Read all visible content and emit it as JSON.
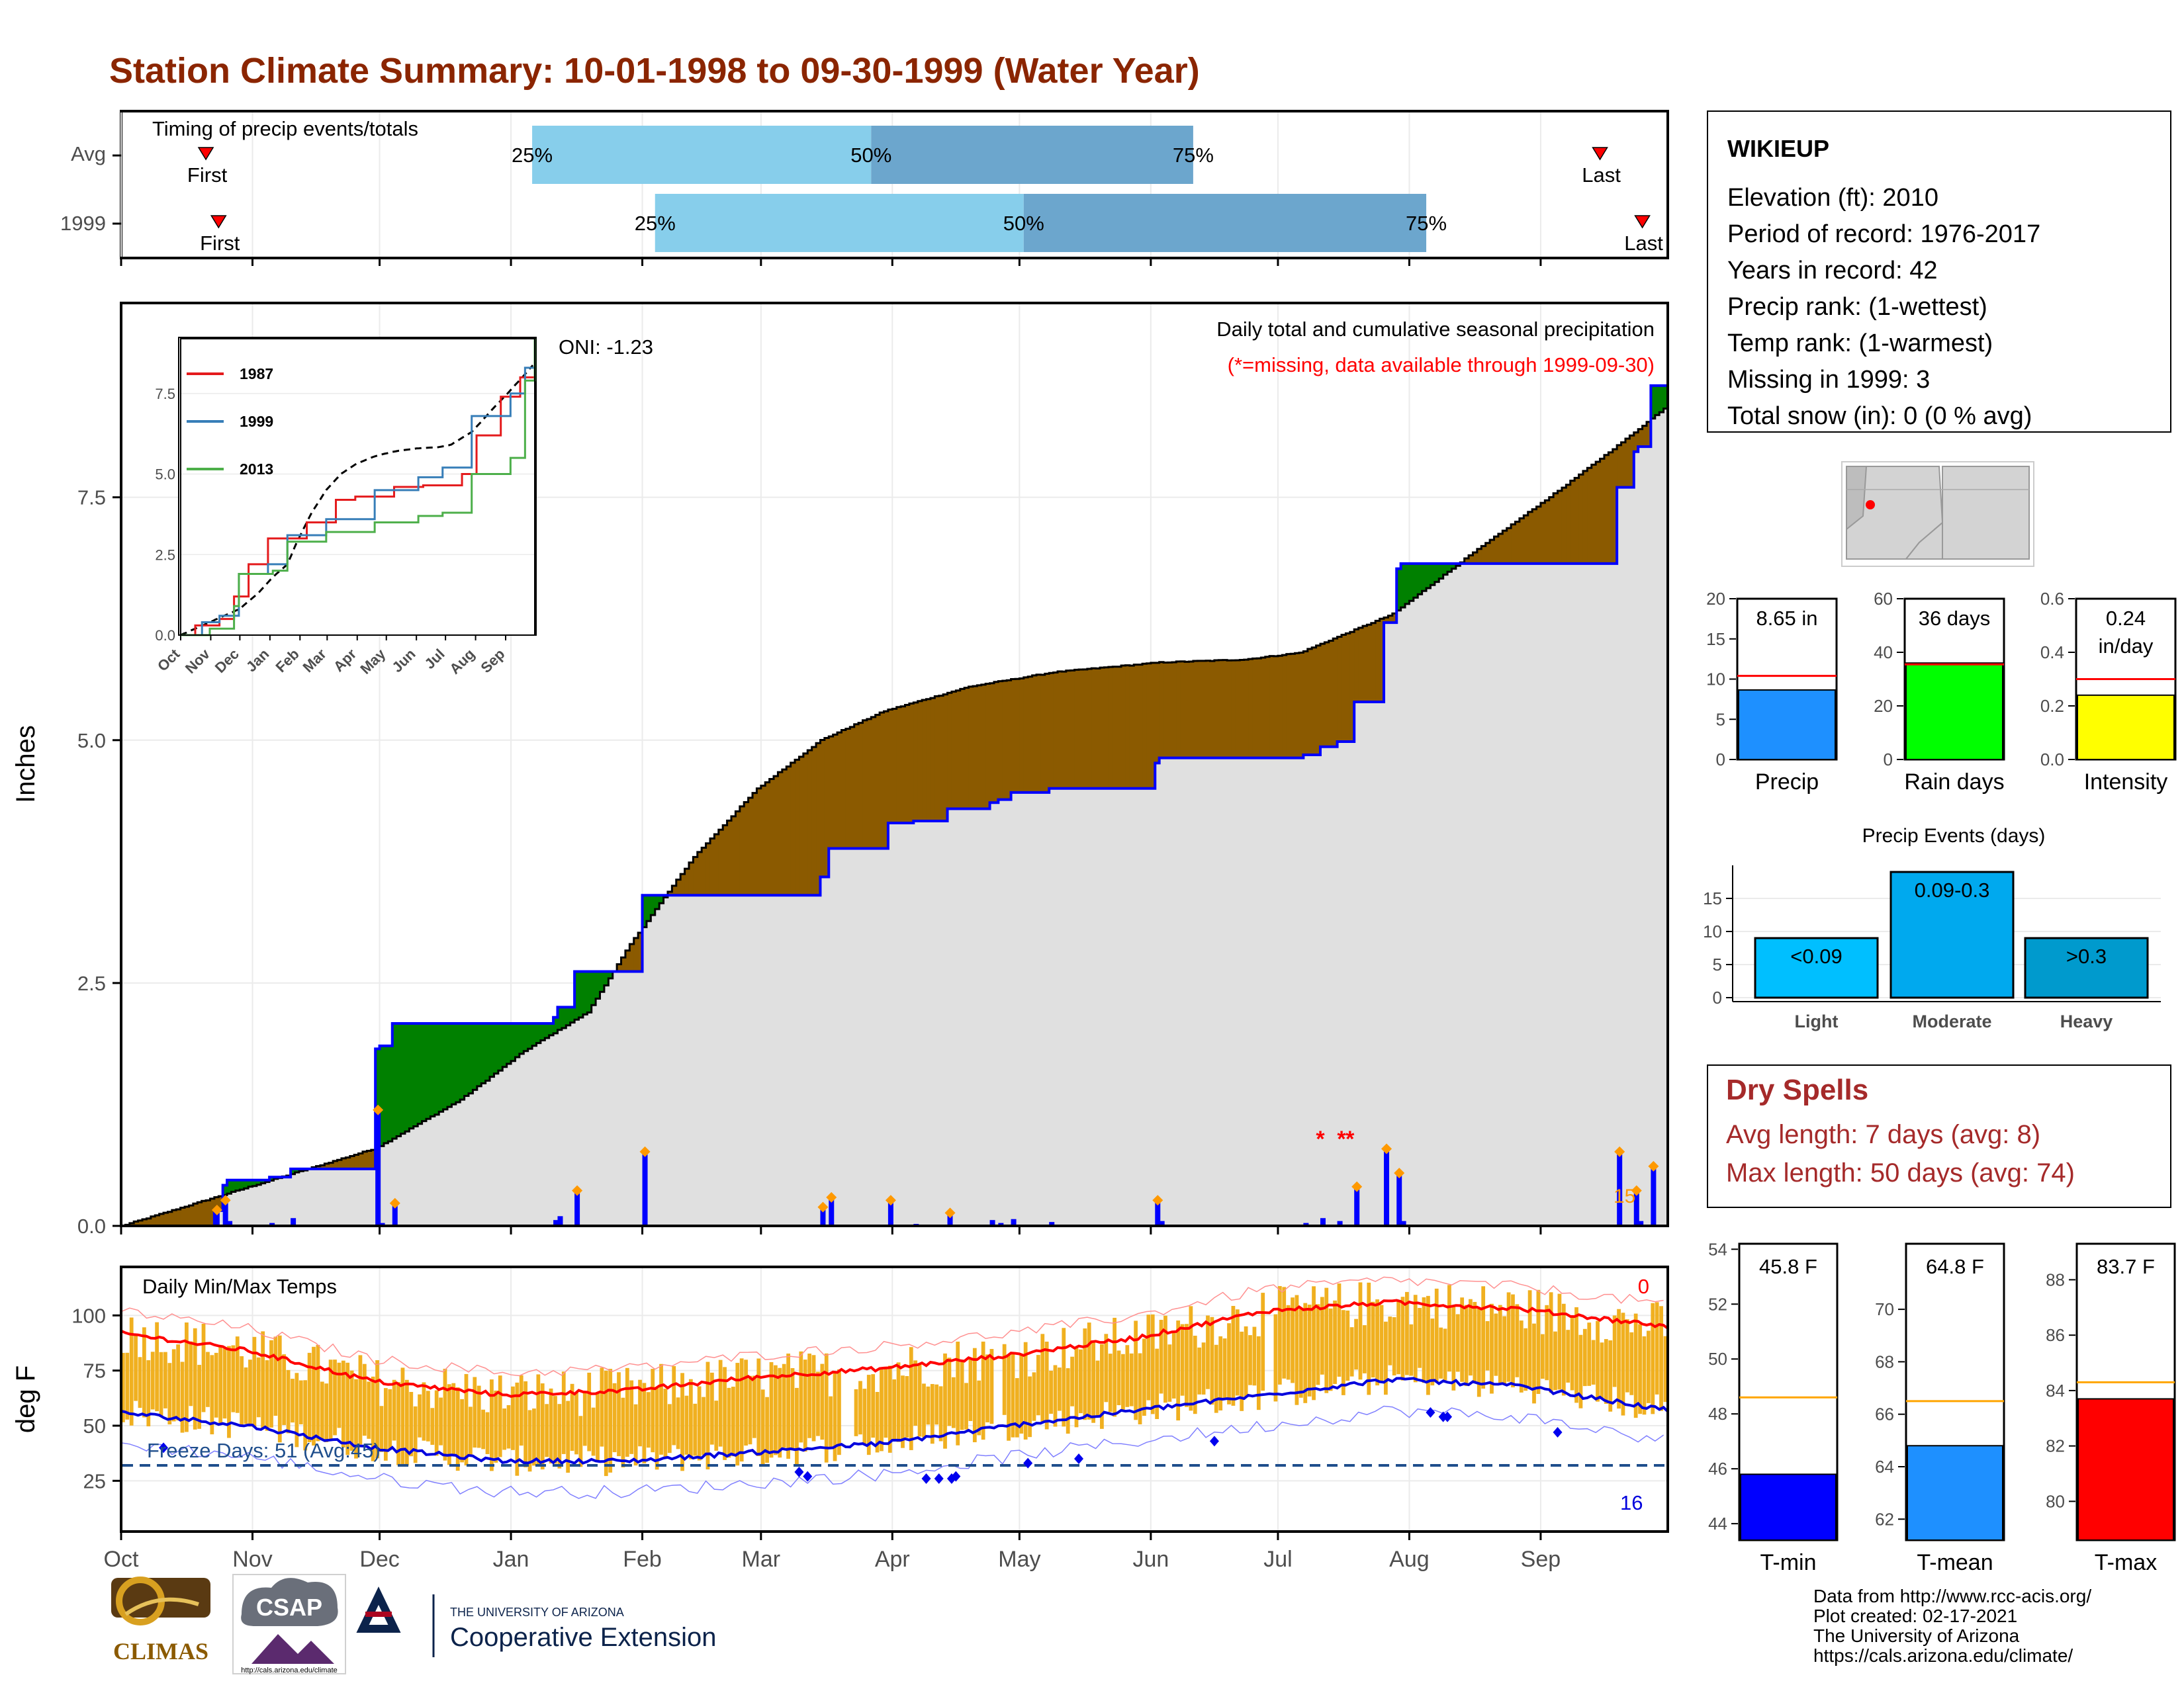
{
  "page": {
    "title": "Station Climate Summary: 10-01-1998 to 09-30-1999 (Water Year)",
    "title_color": "#8B2500"
  },
  "station": {
    "name": "WIKIEUP",
    "lines": [
      "Elevation (ft): 2010",
      "Period of record: 1976-2017",
      "Years in record: 42",
      "Precip rank:  (1-wettest)",
      "Temp rank:  (1-warmest)",
      "Missing in 1999: 3",
      "Total snow (in): 0 (0 % avg)"
    ],
    "map_dot_color": "#ff0000"
  },
  "timing": {
    "title": "Timing of precip events/totals",
    "rows": [
      {
        "label": "Avg",
        "first_label": "First",
        "last_label": "Last",
        "first_date": "1998-10-21",
        "p25_date": "1999-01-06",
        "p50_date": "1999-03-27",
        "p75_date": "1999-06-11",
        "last_date": "1999-09-15",
        "pct_labels": [
          "25%",
          "50%",
          "75%"
        ]
      },
      {
        "label": "1999",
        "first_label": "First",
        "last_label": "Last",
        "first_date": "1998-10-24",
        "p25_date": "1999-02-04",
        "p50_date": "1999-05-02",
        "p75_date": "1999-08-05",
        "last_date": "1999-09-25",
        "pct_labels": [
          "25%",
          "50%",
          "75%"
        ]
      }
    ],
    "colors": {
      "light": "#87CEEB",
      "dark": "#6CA6CD",
      "marker": "#ff0000"
    }
  },
  "precip": {
    "ylabel": "Inches",
    "yticks": [
      "0.0",
      "2.5",
      "5.0",
      "7.5"
    ],
    "ylim": [
      0,
      9.5
    ],
    "annotation_oni": "ONI: -1.23",
    "header": "Daily total and cumulative seasonal precipitation",
    "subheader": "(*=missing, data available through 1999-09-30)",
    "subheader_color": "#ff0000",
    "corner_count": "15",
    "colors": {
      "above": "#008000",
      "below": "#8B5A00",
      "current": "#0000ff",
      "fill": "#e0e0e0",
      "avg": "#000000",
      "event": "#ff9900"
    }
  },
  "inset": {
    "legend": [
      "1987",
      "1999",
      "2013"
    ],
    "colors": [
      "#e41a1c",
      "#377eb8",
      "#4daf4a"
    ],
    "yticks": [
      "0.0",
      "2.5",
      "5.0",
      "7.5"
    ],
    "months": [
      "Oct",
      "Nov",
      "Dec",
      "Jan",
      "Feb",
      "Mar",
      "Apr",
      "May",
      "Jun",
      "Jul",
      "Aug",
      "Sep"
    ]
  },
  "temps": {
    "title": "Daily Min/Max Temps",
    "ylabel": "deg F",
    "yticks": [
      "25",
      "50",
      "75",
      "100"
    ],
    "freeze_label": "Freeze Days: 51 (Avg:45)",
    "top_count": "0",
    "bottom_count": "16",
    "colors": {
      "bars": "#f0b020",
      "max_avg": "#ff0000",
      "min_avg": "#0000dd",
      "freeze_line": "#1f4e8c"
    }
  },
  "months_axis": [
    "Oct",
    "Nov",
    "Dec",
    "Jan",
    "Feb",
    "Mar",
    "Apr",
    "May",
    "Jun",
    "Jul",
    "Aug",
    "Sep"
  ],
  "bars_precip": [
    {
      "label": "Precip",
      "value_label": "8.65 in",
      "value": 8.65,
      "avg": 10.4,
      "ymax": 20,
      "ticks": [
        "0",
        "5",
        "10",
        "15",
        "20"
      ],
      "color": "#1E90FF"
    },
    {
      "label": "Rain days",
      "value_label": "36 days",
      "value": 36,
      "avg": 35.5,
      "ymax": 60,
      "ticks": [
        "0",
        "20",
        "40",
        "60"
      ],
      "color": "#00ff00"
    },
    {
      "label": "Intensity",
      "value_label_1": "0.24",
      "value_label_2": "in/day",
      "value": 0.24,
      "avg": 0.3,
      "ymax": 0.6,
      "ticks": [
        "0.0",
        "0.2",
        "0.4",
        "0.6"
      ],
      "color": "#ffff00"
    }
  ],
  "events": {
    "title": "Precip Events (days)",
    "categories": [
      "Light",
      "Moderate",
      "Heavy"
    ],
    "labels": [
      "<0.09",
      "0.09-0.3",
      ">0.3"
    ],
    "values": [
      9,
      19,
      9
    ],
    "ticks": [
      "0",
      "5",
      "10",
      "15"
    ],
    "colors": [
      "#00BFFF",
      "#00A9EE",
      "#009ACD"
    ]
  },
  "dry_spells": {
    "title": "Dry Spells",
    "avg_line": "Avg length: 7 days (avg: 8)",
    "max_line": "Max length: 50 days (avg: 74)",
    "color": "#A52A2A"
  },
  "bars_temp": [
    {
      "label": "T-min",
      "value_label": "45.8 F",
      "value": 45.8,
      "avg": 48.6,
      "ylim": [
        43.4,
        54.2
      ],
      "ticks": [
        "44",
        "46",
        "48",
        "50",
        "52",
        "54"
      ],
      "color": "#0000ff"
    },
    {
      "label": "T-mean",
      "value_label": "64.8 F",
      "value": 64.8,
      "avg": 66.5,
      "ylim": [
        61.2,
        72.5
      ],
      "ticks": [
        "62",
        "64",
        "66",
        "68",
        "70"
      ],
      "color": "#1E90FF"
    },
    {
      "label": "T-max",
      "value_label": "83.7 F",
      "value": 83.7,
      "avg": 84.3,
      "ylim": [
        78.6,
        89.3
      ],
      "ticks": [
        "80",
        "82",
        "84",
        "86",
        "88"
      ],
      "color": "#ff0000"
    }
  ],
  "footer": {
    "credits": [
      "Data from http://www.rcc-acis.org/",
      "Plot created: 02-17-2021",
      "The University of Arizona",
      "https://cals.arizona.edu/climate/"
    ],
    "logo_climas": "CLIMAS",
    "logo_csap": "CSAP",
    "logo_csap_url": "http://cals.arizona.edu/climate",
    "logo_ua_small": "THE UNIVERSITY OF ARIZONA",
    "logo_ua_big": "Cooperative Extension"
  }
}
